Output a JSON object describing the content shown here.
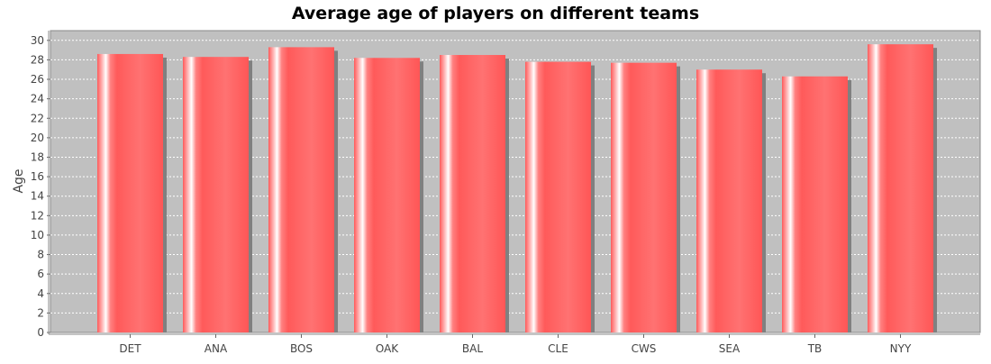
{
  "chart_data": {
    "type": "bar",
    "title": "Average age of players on different teams",
    "xlabel": "",
    "ylabel": "Age",
    "categories": [
      "DET",
      "ANA",
      "BOS",
      "OAK",
      "BAL",
      "CLE",
      "CWS",
      "SEA",
      "TB",
      "NYY"
    ],
    "values": [
      28.6,
      28.3,
      29.3,
      28.2,
      28.5,
      27.8,
      27.7,
      27.0,
      26.3,
      29.6
    ],
    "ylim": [
      0,
      31
    ],
    "yticks": [
      0,
      2,
      4,
      6,
      8,
      10,
      12,
      14,
      16,
      18,
      20,
      22,
      24,
      26,
      28,
      30
    ],
    "grid": true,
    "legend": "none",
    "colors": {
      "bar": "#ff5a5a",
      "bar_highlight": "#ffffff",
      "plot_background": "#c0c0c0",
      "grid": "#ffffff",
      "shadow": "#808080"
    }
  }
}
